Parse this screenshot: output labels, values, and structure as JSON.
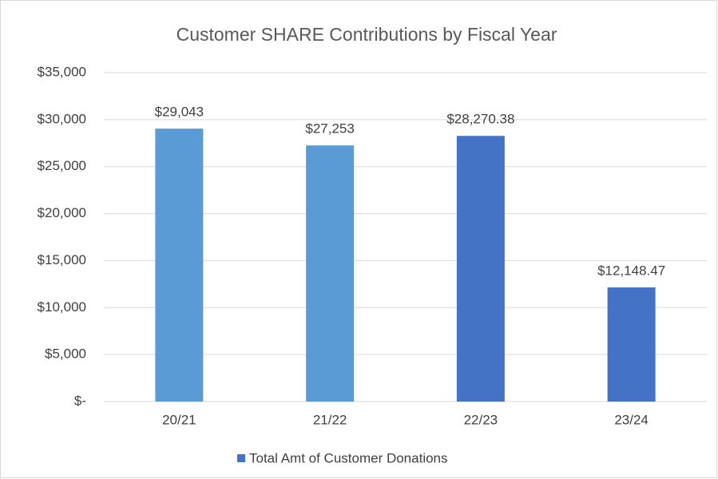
{
  "chart_data": {
    "type": "bar",
    "title": "Customer SHARE Contributions by Fiscal Year",
    "categories": [
      "20/21",
      "21/22",
      "22/23",
      "23/24"
    ],
    "series": [
      {
        "name": "Total Amt of Customer Donations",
        "color": "#4472c4",
        "colors": [
          "#5b9bd5",
          "#5b9bd5",
          "#4472c4",
          "#4472c4"
        ],
        "values": [
          29043,
          27253,
          28270.38,
          12148.47
        ],
        "value_labels": [
          "$29,043",
          "$27,253",
          "$28,270.38",
          "$12,148.47"
        ]
      }
    ],
    "ylim": [
      0,
      35000
    ],
    "yticks": [
      {
        "value": 0,
        "label": "$-"
      },
      {
        "value": 5000,
        "label": "$5,000"
      },
      {
        "value": 10000,
        "label": "$10,000"
      },
      {
        "value": 15000,
        "label": "$15,000"
      },
      {
        "value": 20000,
        "label": "$20,000"
      },
      {
        "value": 25000,
        "label": "$25,000"
      },
      {
        "value": 30000,
        "label": "$30,000"
      },
      {
        "value": 35000,
        "label": "$35,000"
      }
    ],
    "grid": true,
    "legend": "bottom"
  }
}
